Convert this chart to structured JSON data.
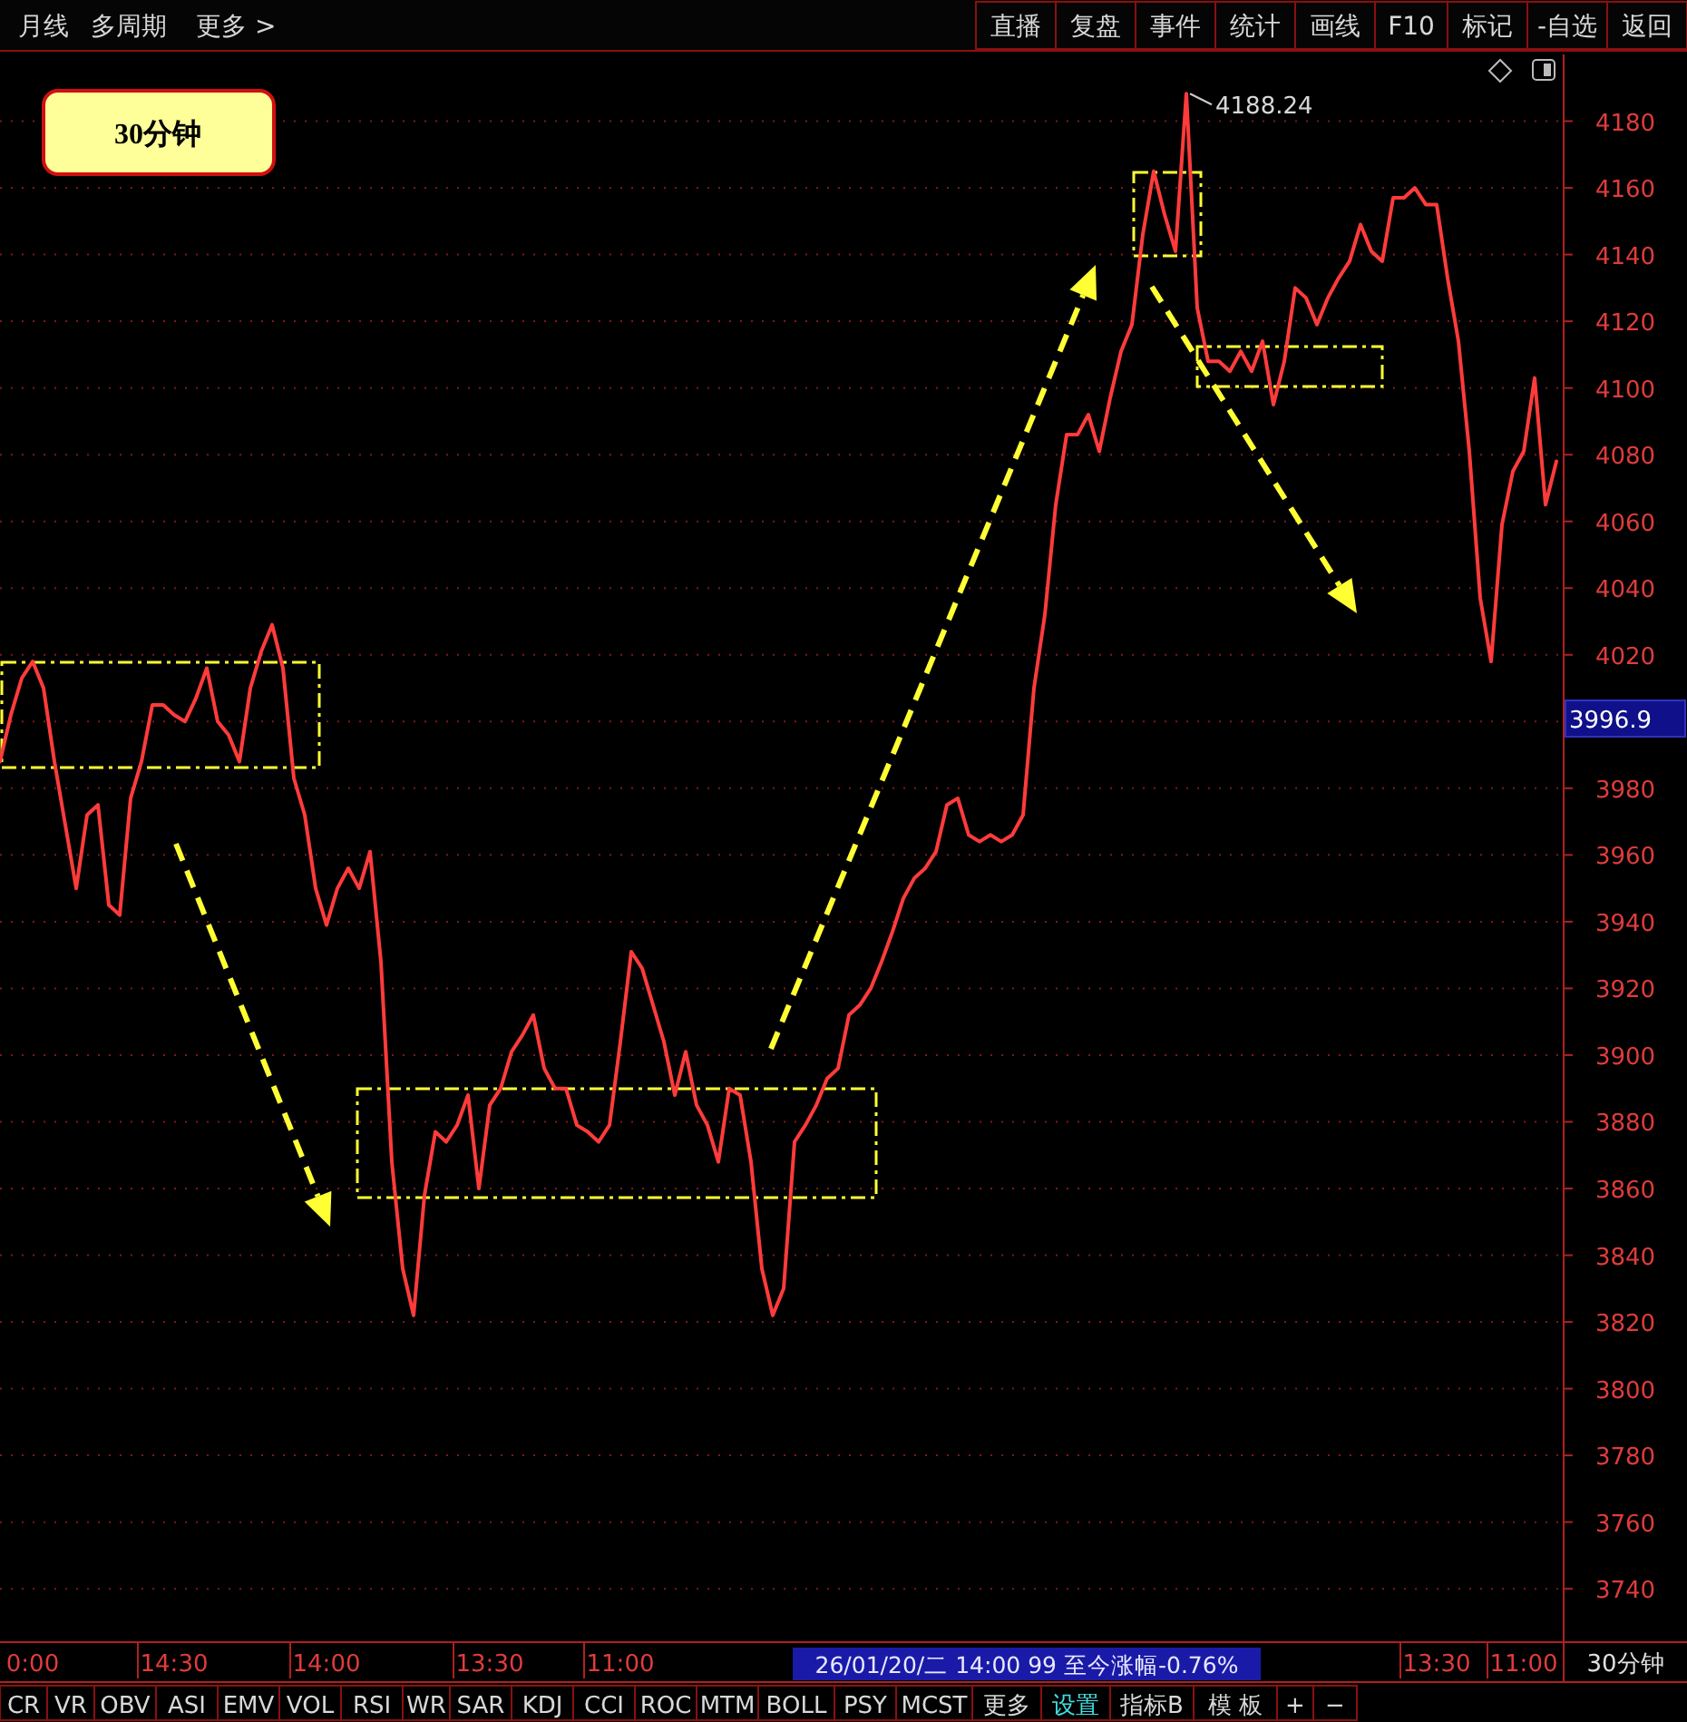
{
  "chart_data": {
    "type": "line",
    "categories": [
      null,
      null,
      null,
      "0:00",
      null,
      null,
      null,
      null,
      null,
      null,
      null,
      null,
      null,
      null,
      null,
      null,
      "14:30",
      null,
      null,
      null,
      null,
      null,
      null,
      null,
      null,
      null,
      null,
      null,
      null,
      null,
      "14:00",
      null,
      null,
      null,
      null,
      null,
      null,
      null,
      null,
      null,
      null,
      null,
      null,
      null,
      null,
      "13:30",
      null,
      null,
      null,
      null,
      null,
      null,
      null,
      null,
      null,
      null,
      null,
      "11:00",
      null,
      null,
      null,
      null,
      null,
      null,
      null,
      null,
      null,
      null,
      null,
      null,
      null,
      null,
      null,
      null,
      null,
      null,
      null,
      null,
      null,
      null,
      null,
      null,
      null,
      null,
      null,
      null,
      null,
      null,
      null,
      null,
      null,
      null,
      null,
      null,
      null,
      null,
      null,
      null,
      null,
      null,
      null,
      null,
      null,
      null,
      null,
      null,
      null,
      null,
      null,
      null,
      null,
      null,
      null,
      null,
      null,
      null,
      null,
      null,
      null,
      null,
      null,
      null,
      null,
      null,
      null,
      null,
      null,
      null,
      null,
      null,
      null,
      null,
      "13:30",
      null,
      null,
      null,
      null,
      null,
      null,
      null,
      "11:00",
      null,
      null,
      null
    ],
    "series": [
      {
        "color": "#ff3b3b",
        "values": [
          3988,
          4002,
          4013,
          4018,
          4010,
          3988,
          3969,
          3950,
          3972,
          3975,
          3945,
          3942,
          3977,
          3988,
          4005,
          4005,
          4002,
          4000,
          4007,
          4016,
          4000,
          3996,
          3988,
          4010,
          4021,
          4029,
          4016,
          3983,
          3972,
          3950,
          3939,
          3950,
          3956,
          3950,
          3961,
          3928,
          3868,
          3836,
          3822,
          3858,
          3877,
          3874,
          3879,
          3888,
          3860,
          3885,
          3890,
          3901,
          3906,
          3912,
          3896,
          3890,
          3890,
          3879,
          3877,
          3874,
          3879,
          3904,
          3931,
          3926,
          3915,
          3904,
          3888,
          3901,
          3885,
          3879,
          3868,
          3890,
          3888,
          3868,
          3836,
          3822,
          3830,
          3874,
          3879,
          3885,
          3893,
          3896,
          3912,
          3915,
          3920,
          3928,
          3937,
          3947,
          3953,
          3956,
          3961,
          3975,
          3977,
          3966,
          3964,
          3966,
          3964,
          3966,
          3972,
          4010,
          4032,
          4065,
          4086,
          4086,
          4092,
          4081,
          4097,
          4111,
          4119,
          4146,
          4165,
          4152,
          4141,
          4188.24,
          4124,
          4108,
          4108,
          4105,
          4111,
          4105,
          4114,
          4095,
          4108,
          4130,
          4127,
          4119,
          4127,
          4133,
          4138,
          4149,
          4141,
          4138,
          4157,
          4157,
          4160,
          4155,
          4155,
          4133,
          4114,
          4081,
          4037,
          4018,
          4059,
          4075,
          4081,
          4103,
          4065,
          4078
        ]
      }
    ],
    "ylim": [
      3724,
      4200
    ],
    "yticks": [
      3740,
      3760,
      3780,
      3800,
      3820,
      3840,
      3860,
      3880,
      3900,
      3920,
      3940,
      3960,
      3980,
      {
        "value": 4000,
        "label": null
      },
      4020,
      4040,
      4060,
      4080,
      4100,
      4120,
      4140,
      4160,
      4180
    ],
    "grid": "y",
    "line_style": "solid",
    "annotations": [
      "30分钟",
      "4188.24",
      "3996.9",
      "26/01/20/二 14:00 99 至今涨幅-0.76%",
      "30分钟",
      "月线",
      "多周期",
      "更多 >",
      "直播",
      "复盘",
      "事件",
      "统计",
      "画线",
      "F10",
      "标记",
      "-自选",
      "返回",
      "CR",
      "VR",
      "OBV",
      "ASI",
      "EMV",
      "VOL",
      "RSI",
      "WR",
      "SAR",
      "KDJ",
      "CCI",
      "ROC",
      "MTM",
      "BOLL",
      "PSY",
      "MCST",
      "更多",
      "设置",
      "指标B",
      "模 板",
      "+",
      "−"
    ]
  }
}
